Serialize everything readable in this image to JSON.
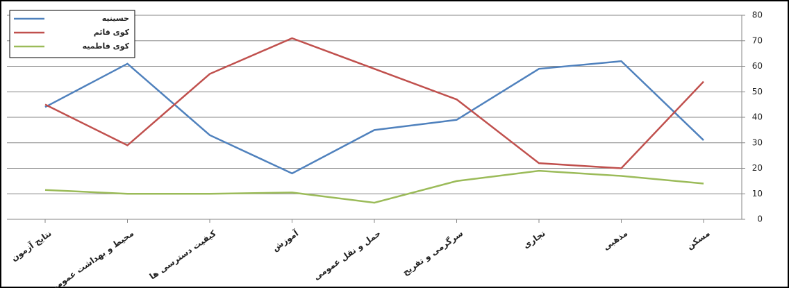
{
  "chart_data": {
    "type": "line",
    "categories": [
      "نتایج آزمون",
      "محیط و بهداشت عمومی",
      "کیفیت دسترسی ها",
      "آموزش",
      "حمل و نقل عمومی",
      "سرگرمی و تفریح",
      "تجاری",
      "مذهبی",
      "مسکن"
    ],
    "series": [
      {
        "name": "حسینیه",
        "color": "#4f81bd",
        "values": [
          44,
          61,
          33,
          18,
          35,
          39,
          59,
          62,
          31
        ]
      },
      {
        "name": "کوی قائم",
        "color": "#c0504d",
        "values": [
          45,
          29,
          57,
          71,
          59,
          47,
          22,
          20,
          54
        ]
      },
      {
        "name": "کوی فاطمیه",
        "color": "#9bbb59",
        "values": [
          11.5,
          10,
          10,
          10.5,
          6.5,
          15,
          19,
          17,
          14
        ]
      }
    ],
    "ylim": [
      0,
      80
    ],
    "yticks": [
      0,
      10,
      20,
      30,
      40,
      50,
      60,
      70,
      80
    ],
    "grid": true,
    "legend": "top-left",
    "y_axis_side": "right"
  }
}
